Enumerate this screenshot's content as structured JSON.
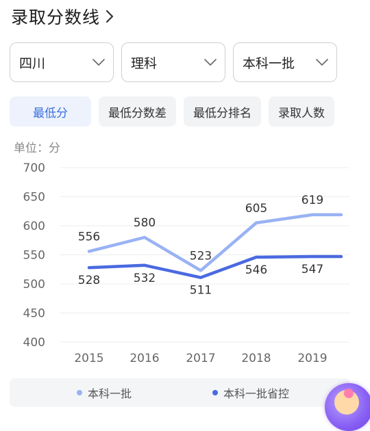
{
  "header": {
    "title": "录取分数线"
  },
  "filters": {
    "province": "四川",
    "subject": "理科",
    "batch": "本科一批"
  },
  "tabs": [
    {
      "label": "最低分",
      "active": true
    },
    {
      "label": "最低分数差",
      "active": false
    },
    {
      "label": "最低分排名",
      "active": false
    },
    {
      "label": "录取人数",
      "active": false
    }
  ],
  "unit_label": "单位：分",
  "colors": {
    "accent": "#3b6fe0",
    "series_light": "#98b2f3",
    "series_dark": "#4a6ae0"
  },
  "chart_data": {
    "type": "line",
    "x": [
      "2015",
      "2016",
      "2017",
      "2018",
      "2019"
    ],
    "ylim": [
      400,
      700
    ],
    "yticks": [
      400,
      450,
      500,
      550,
      600,
      650,
      700
    ],
    "grid": true,
    "legend_position": "bottom",
    "series": [
      {
        "name": "本科一批",
        "values": [
          556,
          580,
          523,
          605,
          619
        ]
      },
      {
        "name": "本科一批省控",
        "values": [
          528,
          532,
          511,
          546,
          547
        ]
      }
    ]
  },
  "legend": [
    "本科一批",
    "本科一批省控"
  ]
}
